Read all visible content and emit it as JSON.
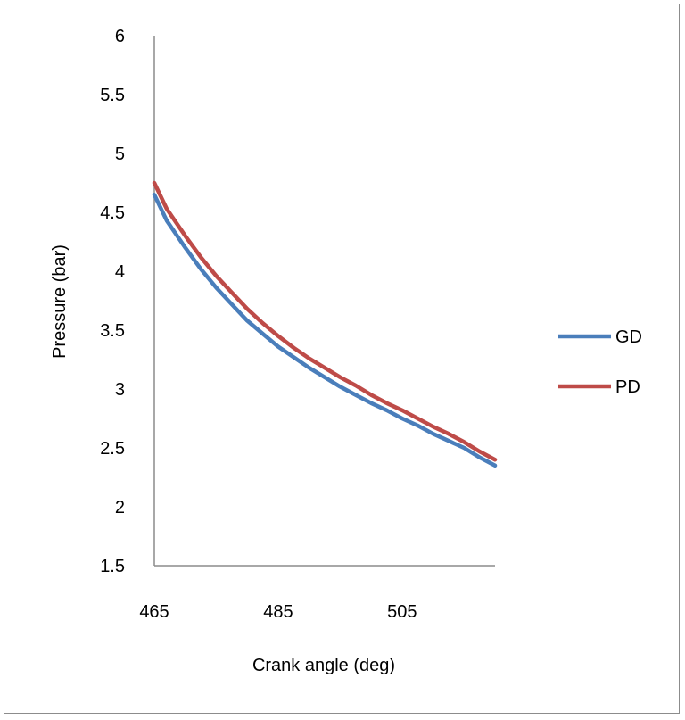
{
  "chart_data": {
    "type": "line",
    "xlabel": "Crank angle  (deg)",
    "ylabel": "Pressure (bar)",
    "xlim": [
      465,
      520
    ],
    "ylim": [
      1.5,
      6
    ],
    "xticks": [
      465,
      485,
      505
    ],
    "yticks": [
      1.5,
      2,
      2.5,
      3,
      3.5,
      4,
      4.5,
      5,
      5.5,
      6
    ],
    "grid": false,
    "legend_position": "right",
    "series": [
      {
        "name": "GD",
        "color": "#4a7ebb",
        "x": [
          465,
          467,
          470,
          472.5,
          475,
          477.5,
          480,
          482.5,
          485,
          487.5,
          490,
          492.5,
          495,
          497.5,
          500,
          502.5,
          505,
          507.5,
          510,
          512.5,
          515,
          517.5,
          520
        ],
        "y": [
          4.65,
          4.43,
          4.2,
          4.02,
          3.86,
          3.72,
          3.58,
          3.47,
          3.36,
          3.27,
          3.18,
          3.1,
          3.02,
          2.95,
          2.88,
          2.82,
          2.75,
          2.69,
          2.62,
          2.56,
          2.5,
          2.42,
          2.35
        ]
      },
      {
        "name": "PD",
        "color": "#be4b48",
        "x": [
          465,
          467,
          470,
          472.5,
          475,
          477.5,
          480,
          482.5,
          485,
          487.5,
          490,
          492.5,
          495,
          497.5,
          500,
          502.5,
          505,
          507.5,
          510,
          512.5,
          515,
          517.5,
          520
        ],
        "y": [
          4.75,
          4.53,
          4.3,
          4.12,
          3.96,
          3.82,
          3.68,
          3.56,
          3.45,
          3.35,
          3.26,
          3.18,
          3.1,
          3.03,
          2.95,
          2.88,
          2.82,
          2.75,
          2.68,
          2.62,
          2.55,
          2.47,
          2.4
        ]
      }
    ]
  }
}
